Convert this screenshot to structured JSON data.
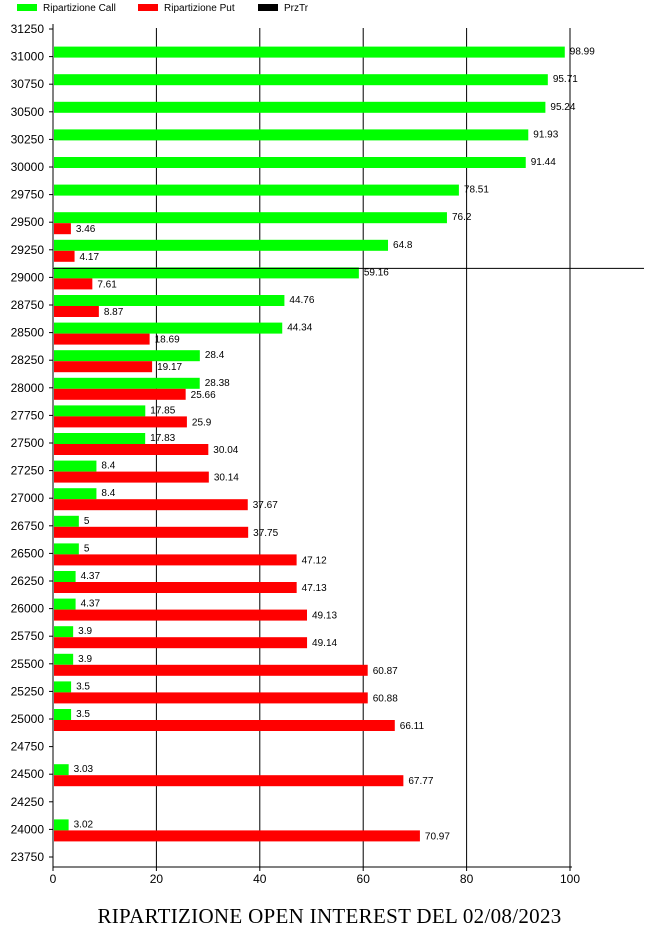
{
  "footer": {
    "title": "RIPARTIZIONE OPEN INTEREST DEL 02/08/2023"
  },
  "chart_data": {
    "type": "bar",
    "orientation": "horizontal",
    "legend": {
      "placement": "top-left",
      "items": [
        {
          "label": "Ripartizione Call",
          "color": "#00ff00"
        },
        {
          "label": "Ripartizione Put",
          "color": "#ff0000"
        },
        {
          "label": "PrzTr",
          "color": "#000000"
        }
      ]
    },
    "y_ticks": [
      "31250",
      "31000",
      "30750",
      "30500",
      "30250",
      "30000",
      "29750",
      "29500",
      "29250",
      "29000",
      "28750",
      "28500",
      "28250",
      "28000",
      "27750",
      "27500",
      "27250",
      "27000",
      "26750",
      "26500",
      "26250",
      "26000",
      "25750",
      "25500",
      "25250",
      "25000",
      "24750",
      "24500",
      "24250",
      "24000",
      "23750"
    ],
    "categories": [
      "31000",
      "30750",
      "30500",
      "30250",
      "30000",
      "29750",
      "29500",
      "29250",
      "29000",
      "28750",
      "28500",
      "28250",
      "28000",
      "27750",
      "27500",
      "27250",
      "27000",
      "26750",
      "26500",
      "26250",
      "26000",
      "25750",
      "25500",
      "25250",
      "25000",
      "24750",
      "24500",
      "24250",
      "24000"
    ],
    "series": [
      {
        "name": "Ripartizione Call",
        "color": "#00ff00",
        "values": [
          98.99,
          95.71,
          95.24,
          91.93,
          91.44,
          78.51,
          76.2,
          64.8,
          59.16,
          44.76,
          44.34,
          28.4,
          28.38,
          17.85,
          17.83,
          8.4,
          8.4,
          5,
          5,
          4.37,
          4.37,
          3.9,
          3.9,
          3.5,
          3.5,
          null,
          3.03,
          null,
          3.02
        ],
        "labels": [
          "98.99",
          "95.71",
          "95.24",
          "91.93",
          "91.44",
          "78.51",
          "76.2",
          "64.8",
          "59.16",
          "44.76",
          "44.34",
          "28.4",
          "28.38",
          "17.85",
          "17.83",
          "8.4",
          "8.4",
          "5",
          "5",
          "4.37",
          "4.37",
          "3.9",
          "3.9",
          "3.5",
          "3.5",
          null,
          "3.03",
          null,
          "3.02"
        ]
      },
      {
        "name": "Ripartizione Put",
        "color": "#ff0000",
        "values": [
          null,
          null,
          null,
          null,
          null,
          null,
          3.46,
          4.17,
          7.61,
          8.87,
          18.69,
          19.17,
          25.66,
          25.9,
          30.04,
          30.14,
          37.67,
          37.75,
          47.12,
          47.13,
          49.13,
          49.14,
          60.87,
          60.88,
          66.11,
          null,
          67.77,
          null,
          70.97
        ],
        "labels": [
          null,
          null,
          null,
          null,
          null,
          null,
          "3.46",
          "4.17",
          "7.61",
          "8.87",
          "18.69",
          "19.17",
          "25.66",
          "25.9",
          "30.04",
          "30.14",
          "37.67",
          "37.75",
          "47.12",
          "47.13",
          "49.13",
          "49.14",
          "60.87",
          "60.88",
          "66.11",
          null,
          "67.77",
          null,
          "70.97"
        ]
      }
    ],
    "price_line": {
      "name": "PrzTr",
      "value": 29000
    },
    "x_ticks": [
      "0",
      "20",
      "40",
      "60",
      "80",
      "100"
    ],
    "xlim": [
      0,
      100
    ],
    "grid": {
      "vertical": true,
      "horizontal": false
    }
  }
}
